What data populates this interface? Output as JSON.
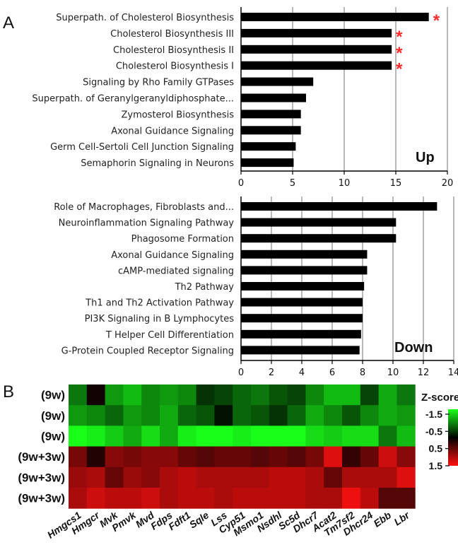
{
  "chart_data": [
    {
      "type": "bar",
      "orientation": "horizontal",
      "panel_label": "A",
      "corner_label": "Up",
      "categories": [
        "Superpath. of Cholesterol Biosynthesis",
        "Cholesterol Biosynthesis III",
        "Cholesterol Biosynthesis II",
        "Cholesterol Biosynthesis I",
        "Signaling by Rho Family GTPases",
        "Superpath. of Geranylgeranyldiphosphate...",
        "Zymosterol Biosynthesis",
        "Axonal Guidance Signaling",
        "Germ Cell-Sertoli Cell Junction Signaling",
        "Semaphorin Signaling in Neurons"
      ],
      "values": [
        18.2,
        14.6,
        14.6,
        14.6,
        7.0,
        6.3,
        5.8,
        5.8,
        5.3,
        5.1
      ],
      "significant": [
        true,
        true,
        true,
        true,
        false,
        false,
        false,
        false,
        false,
        false
      ],
      "star_symbol": "*",
      "xlim": [
        0,
        20
      ],
      "xticks": [
        0,
        5,
        10,
        15,
        20
      ],
      "grid": true,
      "bar_color": "#000000"
    },
    {
      "type": "bar",
      "orientation": "horizontal",
      "corner_label": "Down",
      "categories": [
        "Role of Macrophages, Fibroblasts and...",
        "Neuroinflammation Signaling Pathway",
        "Phagosome Formation",
        "Axonal Guidance Signaling",
        "cAMP-mediated signaling",
        "Th2 Pathway",
        "Th1 and Th2 Activation Pathway",
        "PI3K Signaling in B Lymphocytes",
        "T Helper Cell Differentiation",
        "G-Protein Coupled Receptor Signaling"
      ],
      "values": [
        12.9,
        10.2,
        10.2,
        8.3,
        8.3,
        8.1,
        8.0,
        8.0,
        7.9,
        7.8
      ],
      "xlim": [
        0,
        14
      ],
      "xticks": [
        0,
        2,
        4,
        6,
        8,
        10,
        12,
        14
      ],
      "grid": true,
      "bar_color": "#000000"
    },
    {
      "type": "heatmap",
      "panel_label": "B",
      "rows": [
        "(9w)",
        "(9w)",
        "(9w)",
        "(9w+3w)",
        "(9w+3w)",
        "(9w+3w)"
      ],
      "columns": [
        "Hmgcs1",
        "Hmgcr",
        "Mvk",
        "Pmvk",
        "Mvd",
        "Fdps",
        "Fdft1",
        "Sqle",
        "Lss",
        "Cyp51",
        "Msmo1",
        "Nsdhl",
        "Sc5d",
        "Dhcr7",
        "Acat2",
        "Tm7sf2",
        "Dhcr24",
        "Ebb",
        "Lbr"
      ],
      "values": [
        [
          -0.7,
          0.1,
          -0.9,
          -1.1,
          -0.8,
          -0.9,
          -0.8,
          -0.3,
          -0.4,
          -0.6,
          -0.7,
          -0.5,
          -0.4,
          -0.8,
          -1.1,
          -1.1,
          -0.4,
          -1.0,
          -0.7
        ],
        [
          -0.9,
          -0.8,
          -0.6,
          -0.9,
          -0.8,
          -1.0,
          -0.6,
          -0.5,
          -0.1,
          -0.6,
          -0.5,
          -0.3,
          -0.6,
          -1.0,
          -0.8,
          -0.5,
          -0.8,
          -1.0,
          -0.9
        ],
        [
          -1.5,
          -1.4,
          -1.2,
          -1.0,
          -1.3,
          -1.0,
          -1.4,
          -1.6,
          -1.7,
          -1.4,
          -1.5,
          -1.6,
          -1.6,
          -1.3,
          -1.2,
          -1.3,
          -1.3,
          -0.7,
          -1.1
        ],
        [
          0.7,
          0.2,
          0.8,
          0.7,
          0.8,
          0.8,
          0.6,
          0.5,
          0.6,
          0.6,
          0.5,
          0.6,
          0.5,
          0.7,
          1.3,
          0.3,
          0.6,
          1.2,
          0.8
        ],
        [
          0.9,
          1.0,
          0.6,
          0.9,
          0.8,
          1.0,
          1.1,
          1.0,
          1.0,
          1.0,
          1.0,
          1.1,
          1.1,
          1.0,
          0.6,
          1.0,
          1.0,
          1.0,
          1.3
        ],
        [
          1.0,
          1.2,
          1.1,
          1.1,
          1.2,
          1.0,
          1.1,
          1.1,
          1.0,
          1.1,
          1.1,
          1.1,
          1.1,
          1.0,
          1.0,
          1.4,
          1.1,
          0.5,
          0.5
        ]
      ],
      "legend_title": "Z-score",
      "scale_ticks": [
        "-1.5",
        "-0.5",
        "0.5",
        "1.5"
      ],
      "scale_min": -1.5,
      "scale_max": 1.5,
      "colors": {
        "low": "#19ff19",
        "mid": "#000000",
        "high": "#ff1111"
      }
    }
  ]
}
